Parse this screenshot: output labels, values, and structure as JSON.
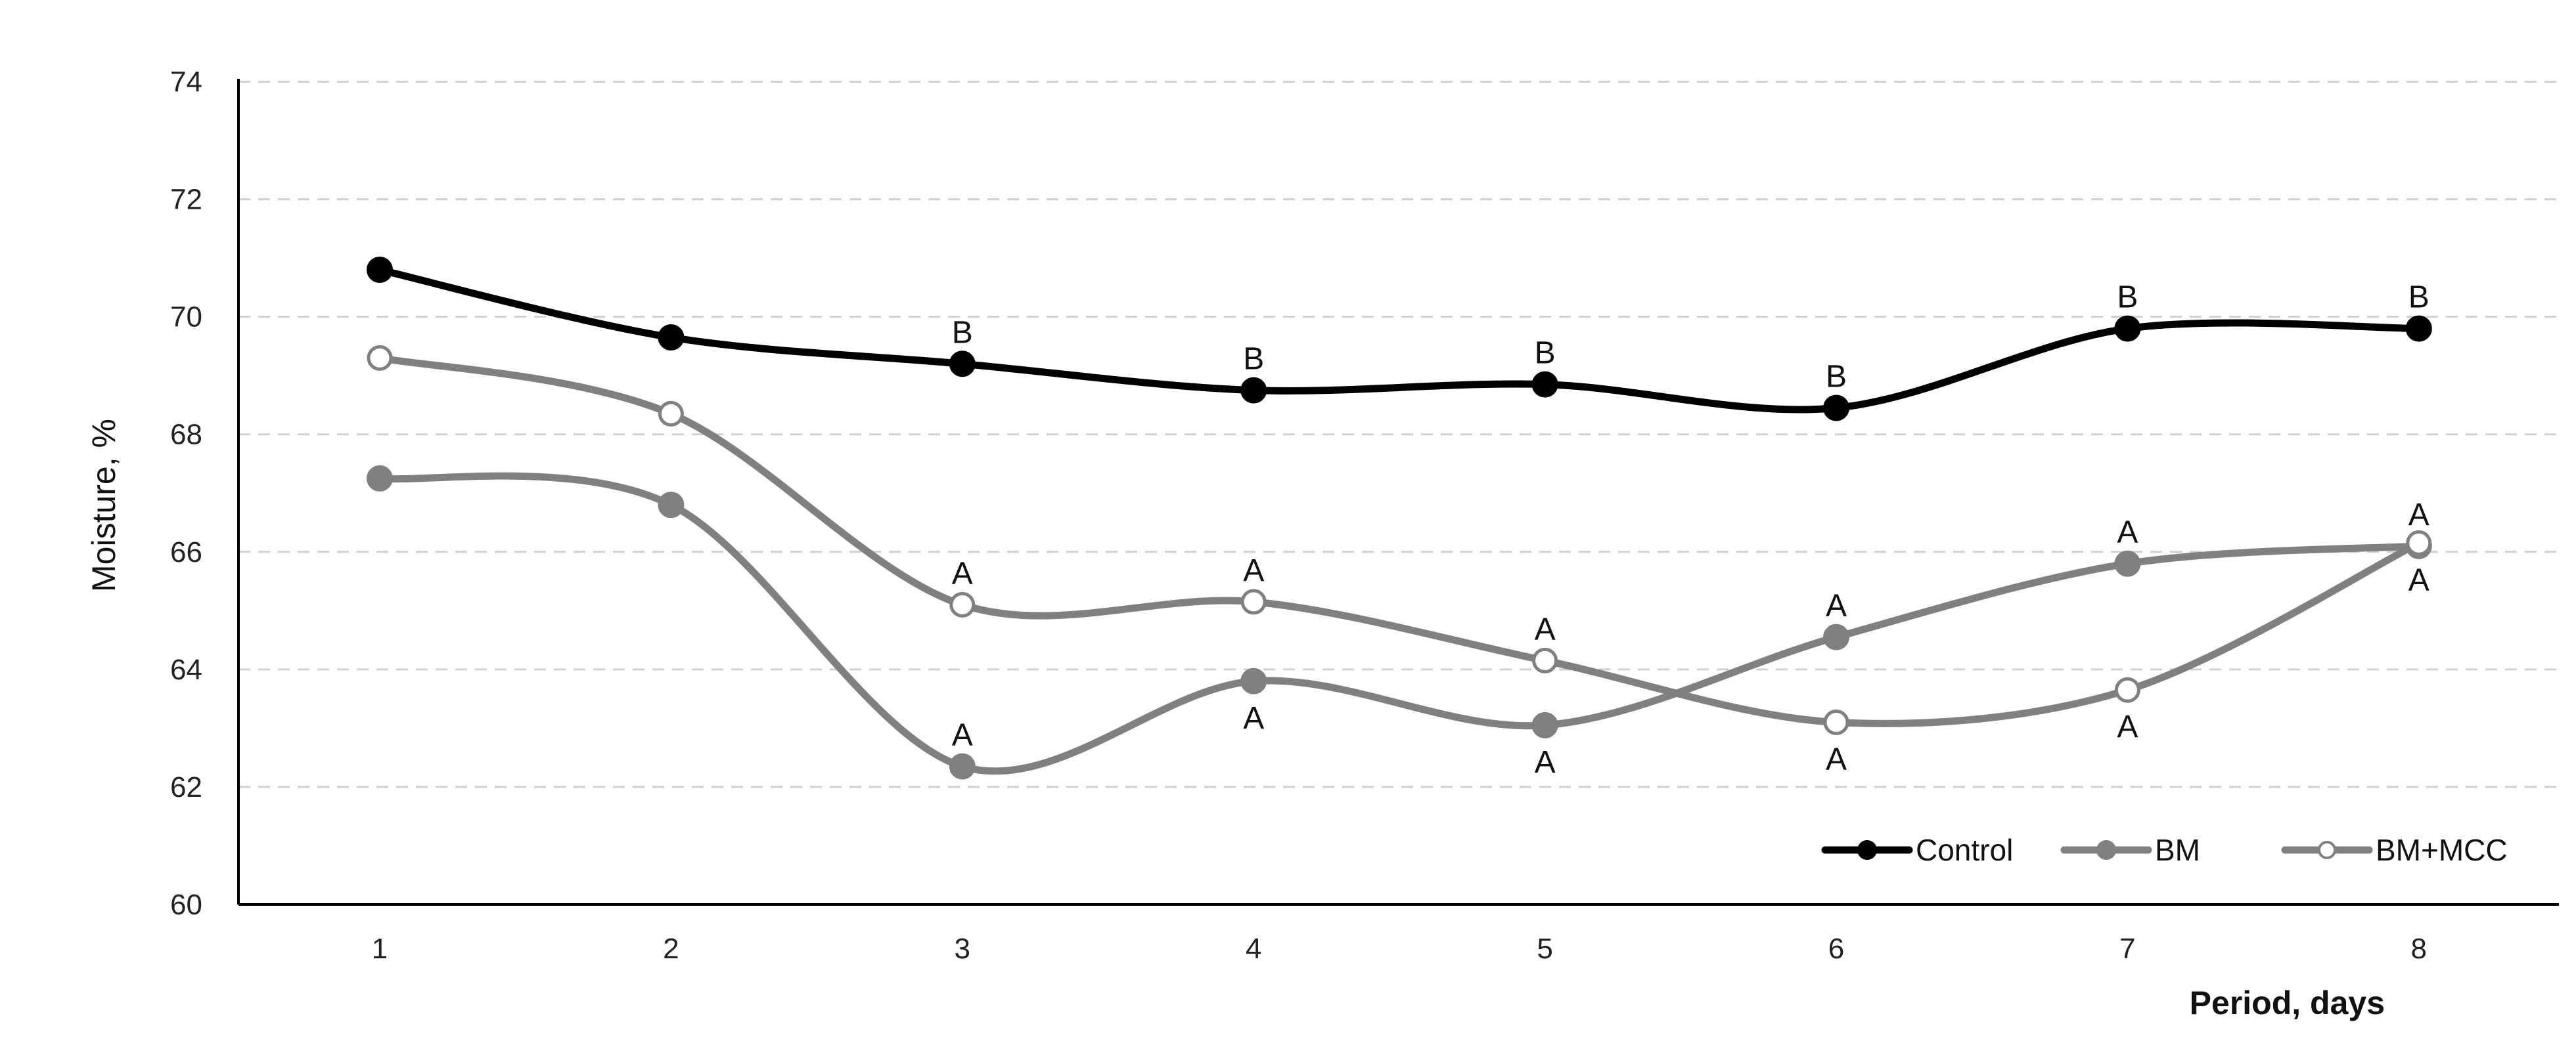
{
  "chart_data": {
    "type": "line",
    "title": "",
    "xlabel": "Period, days",
    "ylabel": "Moisture, %",
    "categories": [
      "1",
      "2",
      "3",
      "4",
      "5",
      "6",
      "7",
      "8"
    ],
    "x": [
      1,
      2,
      3,
      4,
      5,
      6,
      7,
      8
    ],
    "ylim": [
      60,
      75
    ],
    "yticks": [
      60,
      62,
      64,
      66,
      68,
      70,
      72,
      74
    ],
    "grid": "horizontal dashed",
    "legend_position": "bottom-right",
    "series": [
      {
        "name": "Control",
        "color": "#000000",
        "marker": "filled-circle",
        "values": [
          70.8,
          69.65,
          69.2,
          68.75,
          68.85,
          68.45,
          69.8,
          69.8
        ],
        "labels": [
          "",
          "",
          "B",
          "B",
          "B",
          "B",
          "B",
          "B"
        ],
        "label_positions": [
          "",
          "",
          "above",
          "above",
          "above",
          "above",
          "above",
          "above"
        ]
      },
      {
        "name": "BM",
        "color": "#808080",
        "marker": "filled-circle",
        "values": [
          67.25,
          66.8,
          62.35,
          63.8,
          63.05,
          64.55,
          65.8,
          66.1
        ],
        "labels": [
          "",
          "",
          "A",
          "A",
          "A",
          "A",
          "A",
          "A"
        ],
        "label_positions": [
          "",
          "",
          "above",
          "below",
          "below",
          "above",
          "above",
          "above"
        ]
      },
      {
        "name": "BM+MCC",
        "color": "#808080",
        "marker": "open-circle",
        "values": [
          69.3,
          68.35,
          65.1,
          65.15,
          64.15,
          63.1,
          63.65,
          66.15
        ],
        "labels": [
          "",
          "",
          "A",
          "A",
          "A",
          "A",
          "A",
          "A"
        ],
        "label_positions": [
          "",
          "",
          "above",
          "above",
          "above",
          "below",
          "below",
          "below"
        ]
      }
    ]
  }
}
